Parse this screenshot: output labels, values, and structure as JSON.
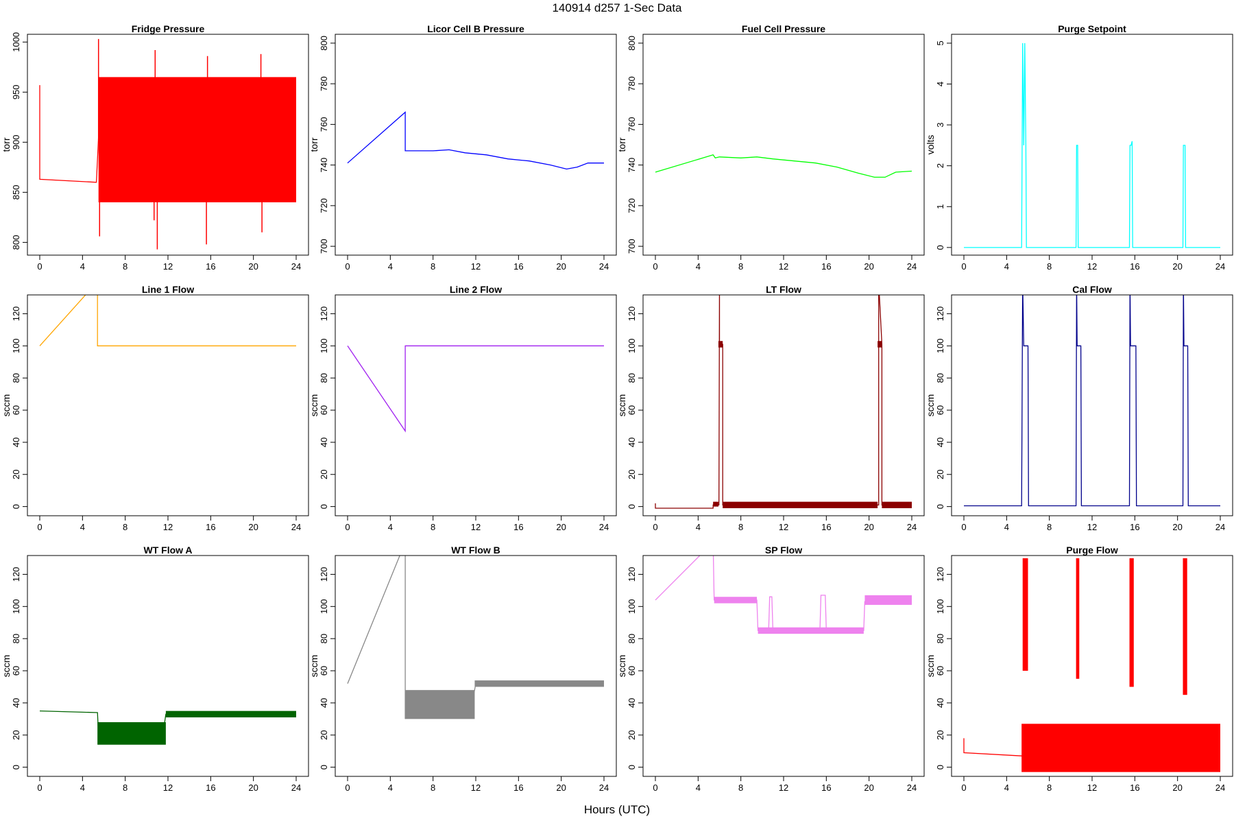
{
  "figure": {
    "title": "140914    d257    1-Sec Data",
    "xlabel": "Hours (UTC)"
  },
  "chart_data": [
    {
      "type": "line",
      "title": "Fridge Pressure",
      "ylabel": "torr",
      "color": "#ff0000",
      "xlim": [
        0,
        24
      ],
      "ylim": [
        790,
        1005
      ],
      "xticks": [
        0,
        4,
        8,
        12,
        16,
        20,
        24
      ],
      "yticks": [
        800,
        850,
        900,
        950,
        1000
      ],
      "x": [
        0,
        0,
        5.3,
        5.5,
        24
      ],
      "y": [
        957,
        863,
        860,
        905,
        905
      ],
      "bands": [
        {
          "x0": 5.5,
          "x1": 24,
          "y0": 840,
          "y1": 965
        }
      ],
      "spikes": [
        {
          "x": 5.5,
          "y": 1003
        },
        {
          "x": 5.6,
          "y": 806
        },
        {
          "x": 10.8,
          "y": 992
        },
        {
          "x": 10.7,
          "y": 822
        },
        {
          "x": 11.0,
          "y": 793
        },
        {
          "x": 15.7,
          "y": 986
        },
        {
          "x": 15.6,
          "y": 798
        },
        {
          "x": 20.7,
          "y": 988
        },
        {
          "x": 20.8,
          "y": 810
        }
      ]
    },
    {
      "type": "line",
      "title": "Licor Cell B Pressure",
      "ylabel": "torr",
      "color": "#0000ff",
      "xlim": [
        0,
        24
      ],
      "ylim": [
        697,
        803
      ],
      "xticks": [
        0,
        4,
        8,
        12,
        16,
        20,
        24
      ],
      "yticks": [
        700,
        720,
        740,
        760,
        780,
        800
      ],
      "x": [
        0,
        5.4,
        5.4,
        6,
        8,
        9.5,
        11,
        13,
        15,
        17,
        19,
        20.5,
        21.5,
        22.5,
        24
      ],
      "y": [
        741,
        766,
        747,
        747,
        747,
        747.5,
        746,
        745,
        743,
        742,
        740,
        738,
        739,
        741,
        741
      ]
    },
    {
      "type": "line",
      "title": "Fuel Cell Pressure",
      "ylabel": "torr",
      "color": "#00ff00",
      "xlim": [
        0,
        24
      ],
      "ylim": [
        697,
        803
      ],
      "xticks": [
        0,
        4,
        8,
        12,
        16,
        20,
        24
      ],
      "yticks": [
        700,
        720,
        740,
        760,
        780,
        800
      ],
      "x": [
        0,
        5.4,
        5.6,
        6,
        8,
        9.5,
        11,
        13,
        15,
        17,
        19,
        20.5,
        21.5,
        22.5,
        24
      ],
      "y": [
        736.5,
        745,
        743.5,
        744,
        743.5,
        744,
        743,
        742,
        741,
        739,
        736,
        734,
        734,
        736.5,
        737
      ]
    },
    {
      "type": "line",
      "title": "Purge Setpoint",
      "ylabel": "volts",
      "color": "#00ffff",
      "xlim": [
        0,
        24
      ],
      "ylim": [
        -0.12,
        5.15
      ],
      "xticks": [
        0,
        4,
        8,
        12,
        16,
        20,
        24
      ],
      "yticks": [
        0,
        1,
        2,
        3,
        4,
        5
      ],
      "x": [
        0,
        5.4,
        5.5,
        5.6,
        5.7,
        5.8,
        5.85,
        5.9,
        10.5,
        10.55,
        10.65,
        10.7,
        15.5,
        15.55,
        15.65,
        15.75,
        15.8,
        20.5,
        20.55,
        20.7,
        20.75,
        24
      ],
      "y": [
        0,
        0,
        5,
        2.5,
        5,
        2.5,
        0,
        0,
        0,
        2.5,
        2.5,
        0,
        0,
        2.5,
        2.5,
        2.6,
        0,
        0,
        2.5,
        2.5,
        0,
        0
      ]
    },
    {
      "type": "line",
      "title": "Line 1 Flow",
      "ylabel": "sccm",
      "color": "#ffa500",
      "xlim": [
        0,
        24
      ],
      "ylim": [
        -4,
        130
      ],
      "xticks": [
        0,
        4,
        8,
        12,
        16,
        20,
        24
      ],
      "yticks": [
        0,
        20,
        40,
        60,
        80,
        100,
        120
      ],
      "x": [
        0,
        5.4,
        5.4,
        24
      ],
      "y": [
        100,
        140,
        100,
        100
      ]
    },
    {
      "type": "line",
      "title": "Line 2 Flow",
      "ylabel": "sccm",
      "color": "#a020f0",
      "xlim": [
        0,
        24
      ],
      "ylim": [
        -4,
        130
      ],
      "xticks": [
        0,
        4,
        8,
        12,
        16,
        20,
        24
      ],
      "yticks": [
        0,
        20,
        40,
        60,
        80,
        100,
        120
      ],
      "x": [
        0,
        5.4,
        5.4,
        24
      ],
      "y": [
        100,
        47,
        100,
        100
      ]
    },
    {
      "type": "line",
      "title": "LT Flow",
      "ylabel": "sccm",
      "color": "#8b0000",
      "xlim": [
        0,
        24
      ],
      "ylim": [
        -4,
        130
      ],
      "xticks": [
        0,
        4,
        8,
        12,
        16,
        20,
        24
      ],
      "yticks": [
        0,
        20,
        40,
        60,
        80,
        100,
        120
      ],
      "x": [
        0,
        0,
        5.4,
        5.4,
        5.95,
        6.0,
        6.0,
        6.3,
        6.3,
        20.9,
        20.9,
        21.2,
        21.2,
        24
      ],
      "y": [
        2,
        -1,
        -1,
        1,
        1,
        140,
        101,
        101,
        1,
        1,
        140,
        101,
        1,
        1
      ],
      "bands": [
        {
          "x0": 5.4,
          "x1": 5.9,
          "y0": 0,
          "y1": 3
        },
        {
          "x0": 5.9,
          "x1": 6.3,
          "y0": 99,
          "y1": 103
        },
        {
          "x0": 6.3,
          "x1": 20.8,
          "y0": -1,
          "y1": 3
        },
        {
          "x0": 20.8,
          "x1": 21.2,
          "y0": 99,
          "y1": 103
        },
        {
          "x0": 21.2,
          "x1": 24,
          "y0": -1,
          "y1": 3
        }
      ]
    },
    {
      "type": "line",
      "title": "Cal Flow",
      "ylabel": "sccm",
      "color": "#00008b",
      "xlim": [
        0,
        24
      ],
      "ylim": [
        -4,
        130
      ],
      "xticks": [
        0,
        4,
        8,
        12,
        16,
        20,
        24
      ],
      "yticks": [
        0,
        20,
        40,
        60,
        80,
        100,
        120
      ],
      "x": [
        0,
        5.4,
        5.5,
        5.6,
        6.0,
        6.05,
        10.5,
        10.55,
        10.6,
        10.95,
        11.0,
        15.5,
        15.55,
        15.6,
        16.1,
        16.15,
        20.5,
        20.55,
        20.6,
        20.95,
        21.0,
        24
      ],
      "y": [
        0.5,
        0.5,
        140,
        100,
        100,
        0.5,
        0.5,
        140,
        100,
        100,
        0.5,
        0.5,
        140,
        100,
        100,
        0.5,
        0.5,
        140,
        100,
        100,
        0.5,
        0.5
      ]
    },
    {
      "type": "line",
      "title": "WT Flow A",
      "ylabel": "sccm",
      "color": "#006400",
      "xlim": [
        0,
        24
      ],
      "ylim": [
        -4,
        130
      ],
      "xticks": [
        0,
        4,
        8,
        12,
        16,
        20,
        24
      ],
      "yticks": [
        0,
        20,
        40,
        60,
        80,
        100,
        120
      ],
      "x": [
        0,
        5.4,
        5.5,
        6.5,
        7.5,
        8.5,
        9.5,
        10.5,
        11.5,
        11.8,
        12,
        24
      ],
      "y": [
        35,
        34,
        20,
        19,
        22,
        19,
        21,
        18,
        19,
        33,
        33,
        33
      ],
      "bands": [
        {
          "x0": 5.4,
          "x1": 11.8,
          "y0": 14,
          "y1": 28
        },
        {
          "x0": 11.8,
          "x1": 24,
          "y0": 31,
          "y1": 35
        }
      ]
    },
    {
      "type": "line",
      "title": "WT Flow B",
      "ylabel": "sccm",
      "color": "#888888",
      "xlim": [
        0,
        24
      ],
      "ylim": [
        -4,
        130
      ],
      "xticks": [
        0,
        4,
        8,
        12,
        16,
        20,
        24
      ],
      "yticks": [
        0,
        20,
        40,
        60,
        80,
        100,
        120
      ],
      "x": [
        0,
        5.4,
        5.4,
        5.5,
        7,
        8.5,
        10,
        11.5,
        12,
        24
      ],
      "y": [
        52,
        140,
        30,
        38,
        36,
        38,
        35,
        34,
        52,
        52
      ],
      "bands": [
        {
          "x0": 5.4,
          "x1": 11.9,
          "y0": 30,
          "y1": 48
        },
        {
          "x0": 11.9,
          "x1": 24,
          "y0": 50,
          "y1": 54
        }
      ]
    },
    {
      "type": "line",
      "title": "SP Flow",
      "ylabel": "sccm",
      "color": "#ee82ee",
      "xlim": [
        0,
        24
      ],
      "ylim": [
        -4,
        130
      ],
      "xticks": [
        0,
        4,
        8,
        12,
        16,
        20,
        24
      ],
      "yticks": [
        0,
        20,
        40,
        60,
        80,
        100,
        120
      ],
      "x": [
        0,
        5.4,
        5.5,
        9.5,
        9.6,
        10.6,
        10.7,
        10.9,
        11.0,
        15.4,
        15.5,
        15.9,
        16.0,
        19.5,
        19.6,
        20.5,
        20.6,
        24
      ],
      "y": [
        104,
        140,
        104,
        104,
        85,
        85,
        106,
        106,
        85,
        85,
        107,
        107,
        85,
        85,
        103,
        103,
        104,
        104
      ],
      "bands": [
        {
          "x0": 5.5,
          "x1": 9.5,
          "y0": 102,
          "y1": 106
        },
        {
          "x0": 9.6,
          "x1": 19.5,
          "y0": 83,
          "y1": 87
        },
        {
          "x0": 19.6,
          "x1": 24,
          "y0": 101,
          "y1": 107
        }
      ]
    },
    {
      "type": "line",
      "title": "Purge Flow",
      "ylabel": "sccm",
      "color": "#ff0000",
      "xlim": [
        0,
        24
      ],
      "ylim": [
        -4,
        130
      ],
      "xticks": [
        0,
        4,
        8,
        12,
        16,
        20,
        24
      ],
      "yticks": [
        0,
        20,
        40,
        60,
        80,
        100,
        120
      ],
      "x": [
        0,
        0,
        5.4,
        24
      ],
      "y": [
        18,
        9,
        7,
        12
      ],
      "bands": [
        {
          "x0": 5.4,
          "x1": 24,
          "y0": -3,
          "y1": 27
        },
        {
          "x0": 5.5,
          "x1": 6.0,
          "y0": 60,
          "y1": 130
        },
        {
          "x0": 10.5,
          "x1": 10.8,
          "y0": 55,
          "y1": 130
        },
        {
          "x0": 15.5,
          "x1": 15.9,
          "y0": 50,
          "y1": 130
        },
        {
          "x0": 20.5,
          "x1": 20.9,
          "y0": 45,
          "y1": 130
        }
      ]
    }
  ]
}
